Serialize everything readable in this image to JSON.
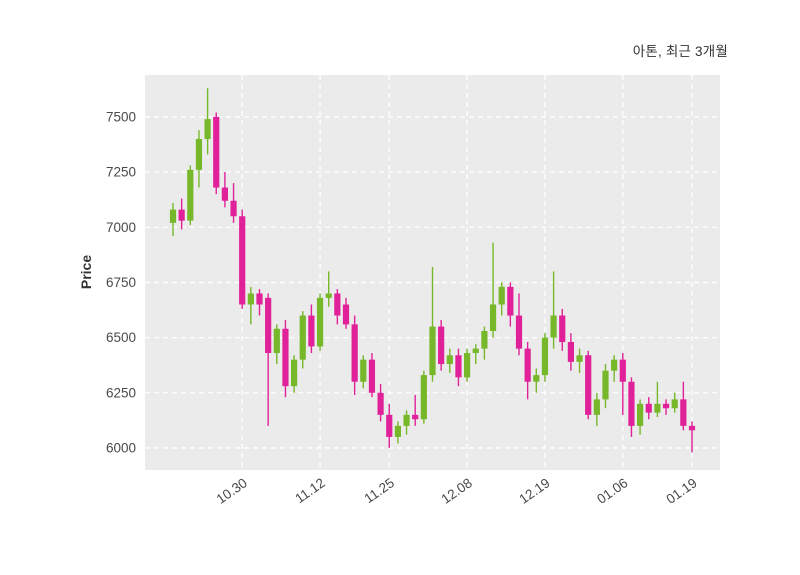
{
  "title": "아톤, 최근 3개월",
  "ylabel": "Price",
  "chart_data": {
    "type": "candlestick",
    "title": "아톤, 최근 3개월",
    "xlabel": "",
    "ylabel": "Price",
    "ylim": [
      5900,
      7690
    ],
    "y_ticks": [
      6000,
      6250,
      6500,
      6750,
      7000,
      7250,
      7500
    ],
    "x_tick_labels": [
      "10.30",
      "11.12",
      "11.25",
      "12.08",
      "12.19",
      "01.06",
      "01.19"
    ],
    "x_tick_indices": [
      8,
      17,
      25,
      34,
      43,
      52,
      60
    ],
    "grid": true,
    "legend": "none",
    "colors": {
      "up": "#76b82a",
      "down": "#e0219a",
      "plot_bg": "#ebebeb",
      "grid": "#ffffff",
      "tick_text": "#4a4a4a"
    },
    "candle_format": [
      "open",
      "high",
      "low",
      "close"
    ],
    "candles": [
      [
        7020,
        7110,
        6960,
        7080
      ],
      [
        7080,
        7130,
        6990,
        7030
      ],
      [
        7030,
        7280,
        7010,
        7260
      ],
      [
        7260,
        7440,
        7180,
        7400
      ],
      [
        7400,
        7630,
        7330,
        7490
      ],
      [
        7500,
        7520,
        7150,
        7180
      ],
      [
        7180,
        7250,
        7090,
        7120
      ],
      [
        7120,
        7200,
        7020,
        7050
      ],
      [
        7050,
        7080,
        6630,
        6650
      ],
      [
        6650,
        6730,
        6560,
        6700
      ],
      [
        6700,
        6720,
        6600,
        6650
      ],
      [
        6680,
        6700,
        6100,
        6430
      ],
      [
        6430,
        6560,
        6380,
        6540
      ],
      [
        6540,
        6580,
        6230,
        6280
      ],
      [
        6280,
        6420,
        6250,
        6400
      ],
      [
        6400,
        6620,
        6360,
        6600
      ],
      [
        6600,
        6650,
        6430,
        6460
      ],
      [
        6460,
        6700,
        6440,
        6680
      ],
      [
        6680,
        6800,
        6640,
        6700
      ],
      [
        6700,
        6720,
        6560,
        6600
      ],
      [
        6650,
        6680,
        6540,
        6560
      ],
      [
        6560,
        6600,
        6240,
        6300
      ],
      [
        6300,
        6420,
        6270,
        6400
      ],
      [
        6400,
        6430,
        6230,
        6250
      ],
      [
        6250,
        6290,
        6120,
        6150
      ],
      [
        6150,
        6200,
        6000,
        6050
      ],
      [
        6050,
        6120,
        6020,
        6100
      ],
      [
        6100,
        6170,
        6060,
        6150
      ],
      [
        6150,
        6240,
        6100,
        6130
      ],
      [
        6130,
        6350,
        6110,
        6330
      ],
      [
        6330,
        6820,
        6300,
        6550
      ],
      [
        6550,
        6580,
        6350,
        6380
      ],
      [
        6380,
        6450,
        6340,
        6420
      ],
      [
        6420,
        6450,
        6280,
        6320
      ],
      [
        6320,
        6450,
        6300,
        6430
      ],
      [
        6430,
        6470,
        6380,
        6450
      ],
      [
        6450,
        6550,
        6400,
        6530
      ],
      [
        6530,
        6930,
        6500,
        6650
      ],
      [
        6650,
        6750,
        6600,
        6730
      ],
      [
        6730,
        6750,
        6550,
        6600
      ],
      [
        6600,
        6700,
        6420,
        6450
      ],
      [
        6450,
        6480,
        6220,
        6300
      ],
      [
        6300,
        6360,
        6250,
        6330
      ],
      [
        6330,
        6520,
        6300,
        6500
      ],
      [
        6500,
        6800,
        6450,
        6600
      ],
      [
        6600,
        6630,
        6440,
        6480
      ],
      [
        6480,
        6520,
        6350,
        6390
      ],
      [
        6390,
        6450,
        6340,
        6420
      ],
      [
        6420,
        6440,
        6130,
        6150
      ],
      [
        6150,
        6250,
        6100,
        6220
      ],
      [
        6220,
        6380,
        6180,
        6350
      ],
      [
        6350,
        6420,
        6300,
        6400
      ],
      [
        6400,
        6430,
        6150,
        6300
      ],
      [
        6300,
        6320,
        6050,
        6100
      ],
      [
        6100,
        6220,
        6060,
        6200
      ],
      [
        6200,
        6230,
        6130,
        6160
      ],
      [
        6160,
        6300,
        6140,
        6200
      ],
      [
        6200,
        6220,
        6150,
        6180
      ],
      [
        6180,
        6250,
        6160,
        6220
      ],
      [
        6220,
        6300,
        6080,
        6100
      ],
      [
        6100,
        6120,
        5980,
        6080
      ]
    ]
  }
}
